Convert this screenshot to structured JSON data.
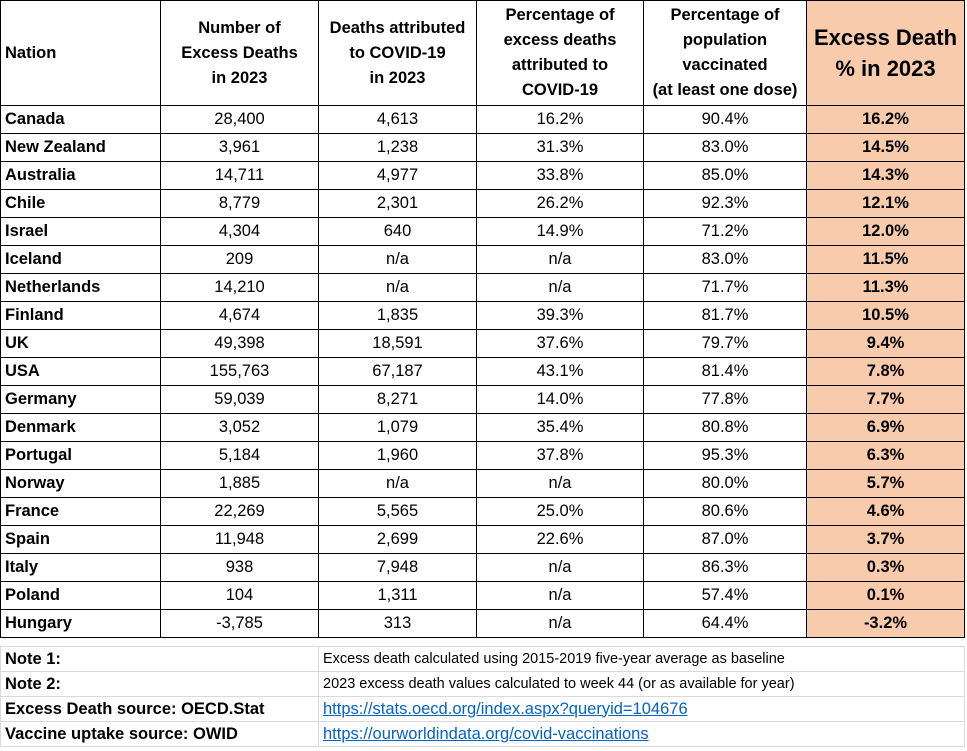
{
  "table": {
    "headers": [
      "Nation",
      "Number of\nExcess Deaths\nin 2023",
      "Deaths attributed\nto COVID-19\nin 2023",
      "Percentage of\nexcess deaths\nattributed to\nCOVID-19",
      "Percentage of\npopulation\nvaccinated\n(at least one dose)",
      "Excess Death\n% in 2023"
    ],
    "rows": [
      [
        "Canada",
        "28,400",
        "4,613",
        "16.2%",
        "90.4%",
        "16.2%"
      ],
      [
        "New Zealand",
        "3,961",
        "1,238",
        "31.3%",
        "83.0%",
        "14.5%"
      ],
      [
        "Australia",
        "14,711",
        "4,977",
        "33.8%",
        "85.0%",
        "14.3%"
      ],
      [
        "Chile",
        "8,779",
        "2,301",
        "26.2%",
        "92.3%",
        "12.1%"
      ],
      [
        "Israel",
        "4,304",
        "640",
        "14.9%",
        "71.2%",
        "12.0%"
      ],
      [
        "Iceland",
        "209",
        "n/a",
        "n/a",
        "83.0%",
        "11.5%"
      ],
      [
        "Netherlands",
        "14,210",
        "n/a",
        "n/a",
        "71.7%",
        "11.3%"
      ],
      [
        "Finland",
        "4,674",
        "1,835",
        "39.3%",
        "81.7%",
        "10.5%"
      ],
      [
        "UK",
        "49,398",
        "18,591",
        "37.6%",
        "79.7%",
        "9.4%"
      ],
      [
        "USA",
        "155,763",
        "67,187",
        "43.1%",
        "81.4%",
        "7.8%"
      ],
      [
        "Germany",
        "59,039",
        "8,271",
        "14.0%",
        "77.8%",
        "7.7%"
      ],
      [
        "Denmark",
        "3,052",
        "1,079",
        "35.4%",
        "80.8%",
        "6.9%"
      ],
      [
        "Portugal",
        "5,184",
        "1,960",
        "37.8%",
        "95.3%",
        "6.3%"
      ],
      [
        "Norway",
        "1,885",
        "n/a",
        "n/a",
        "80.0%",
        "5.7%"
      ],
      [
        "France",
        "22,269",
        "5,565",
        "25.0%",
        "80.6%",
        "4.6%"
      ],
      [
        "Spain",
        "11,948",
        "2,699",
        "22.6%",
        "87.0%",
        "3.7%"
      ],
      [
        "Italy",
        "938",
        "7,948",
        "n/a",
        "86.3%",
        "0.3%"
      ],
      [
        "Poland",
        "104",
        "1,311",
        "n/a",
        "57.4%",
        "0.1%"
      ],
      [
        "Hungary",
        "-3,785",
        "313",
        "n/a",
        "64.4%",
        "-3.2%"
      ]
    ]
  },
  "notes": [
    {
      "label": "Note 1:",
      "text": "Excess death calculated using 2015-2019 five-year average as baseline"
    },
    {
      "label": "Note 2:",
      "text": "2023 excess death values calculated to week 44 (or as available for year)"
    }
  ],
  "sources": [
    {
      "label": "Excess Death source: OECD.Stat",
      "link": "https://stats.oecd.org/index.aspx?queryid=104676"
    },
    {
      "label": "Vaccine uptake source:  OWID",
      "link": "https://ourworldindata.org/covid-vaccinations"
    }
  ]
}
